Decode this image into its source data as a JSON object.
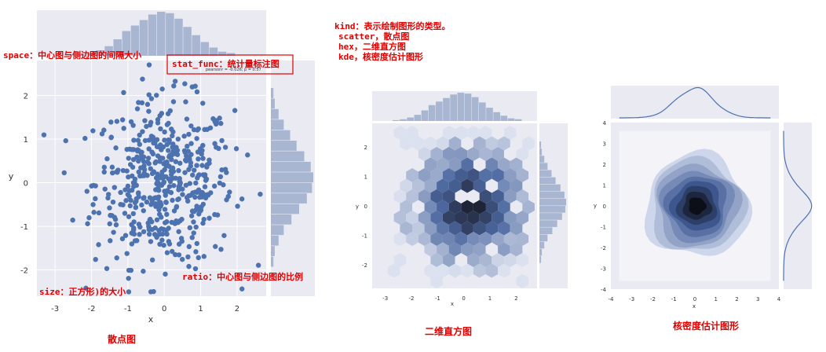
{
  "annotations": {
    "space": "space：中心图与侧边图的间隔大小",
    "stat_func": "stat_func：统计量标注图",
    "pearson": "pearsonr = -0.026; p = 0.57",
    "ratio": "ratio：中心图与侧边图的比例",
    "size": "size：正方形)的大小",
    "kind_lines": [
      "kind：表示绘制图形的类型。",
      "scatter，散点图",
      "hex，二维直方图",
      "kde，核密度估计图形"
    ]
  },
  "captions": {
    "scatter": "散点图",
    "hex": "二维直方图",
    "kde": "核密度估计图形"
  },
  "chart_data": [
    {
      "type": "scatter",
      "xlabel": "x",
      "ylabel": "y",
      "xlim": [
        -3.5,
        2.8
      ],
      "ylim": [
        -2.6,
        2.8
      ],
      "xticks": [
        -3,
        -2,
        -1,
        0,
        1,
        2
      ],
      "yticks": [
        -2,
        -1,
        0,
        1,
        2
      ],
      "xticklabels": [
        "-3",
        "-2",
        "-1",
        "0",
        "1",
        "2"
      ],
      "yticklabels": [
        "-2",
        "-1",
        "0",
        "1",
        "2"
      ],
      "points_count": 500,
      "marginal_x_hist": [
        1,
        2,
        4,
        7,
        12,
        18,
        22,
        26,
        30,
        32,
        31,
        27,
        21,
        15,
        10,
        6,
        3,
        2
      ],
      "marginal_y_hist": [
        2,
        3,
        6,
        10,
        15,
        20,
        26,
        31,
        33,
        32,
        28,
        22,
        16,
        10,
        6,
        3,
        2
      ],
      "grid": true
    },
    {
      "type": "heatmap",
      "subtype": "hex",
      "xlabel": "x",
      "ylabel": "y",
      "xlim": [
        -3.5,
        2.8
      ],
      "ylim": [
        -2.8,
        2.8
      ],
      "xticks": [
        -3,
        -2,
        -1,
        0,
        1,
        2
      ],
      "yticks": [
        -2,
        -1,
        0,
        1,
        2
      ],
      "xticklabels": [
        "-3",
        "-2",
        "-1",
        "0",
        "1",
        "2"
      ],
      "yticklabels": [
        "-2",
        "-1",
        "0",
        "1",
        "2"
      ],
      "marginal_x_hist": [
        1,
        2,
        4,
        7,
        12,
        18,
        22,
        26,
        30,
        32,
        31,
        27,
        21,
        15,
        10,
        6,
        3,
        2
      ],
      "marginal_y_hist": [
        2,
        3,
        6,
        10,
        15,
        20,
        26,
        31,
        33,
        32,
        28,
        22,
        16,
        10,
        6,
        3,
        2
      ]
    },
    {
      "type": "area",
      "subtype": "kde",
      "xlabel": "x",
      "ylabel": "y",
      "xlim": [
        -4,
        4
      ],
      "ylim": [
        -4,
        4
      ],
      "xticks": [
        -4,
        -3,
        -2,
        -1,
        0,
        1,
        2,
        3,
        4
      ],
      "yticks": [
        -4,
        -3,
        -2,
        -1,
        0,
        1,
        2,
        3,
        4
      ],
      "xticklabels": [
        "-4",
        "-3",
        "-2",
        "-1",
        "0",
        "1",
        "2",
        "3",
        "4"
      ],
      "yticklabels": [
        "-4",
        "-3",
        "-2",
        "-1",
        "0",
        "1",
        "2",
        "3",
        "4"
      ],
      "contour_levels": 9
    }
  ],
  "colors": {
    "point": "#4c72b0",
    "hist": "#a9b6d2",
    "panel": "#eaeaf2",
    "dark": "#0d0d14",
    "annot": "#e00000"
  }
}
